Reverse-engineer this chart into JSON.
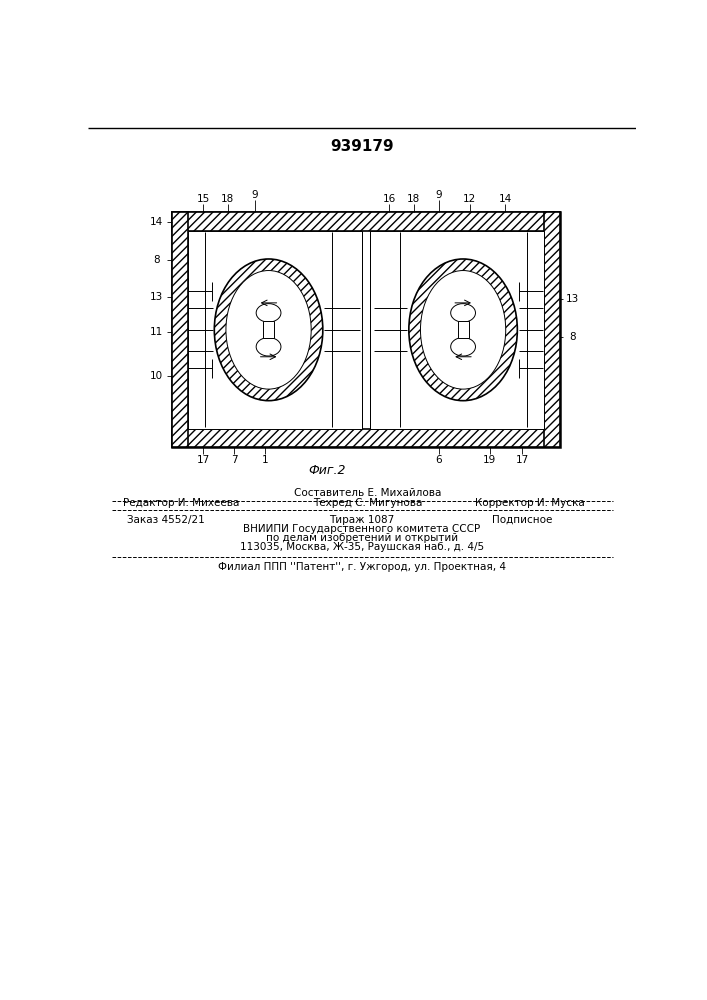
{
  "patent_number": "939179",
  "figure_label": "Фиг.2",
  "background_color": "#ffffff",
  "line_color": "#000000",
  "footer_line1_left": "Редактор И. Михеева",
  "footer_line1_center": "Техред С. Мигунова",
  "footer_line1_center_top": "Составитель Е. Михайлова",
  "footer_line1_right": "Корректор И. Муска",
  "footer_line2_left": "Заказ 4552/21",
  "footer_line2_center": "Тираж 1087",
  "footer_line2_right": "Подписное",
  "footer_line3": "ВНИИПИ Государственного комитета СССР",
  "footer_line4": "по делам изобретений и открытий",
  "footer_line5": "113035, Москва, Ж-35, Раушская наб., д. 4/5",
  "footer_line6": "Филиал ППП ''Патент'', г. Ужгород, ул. Проектная, 4"
}
